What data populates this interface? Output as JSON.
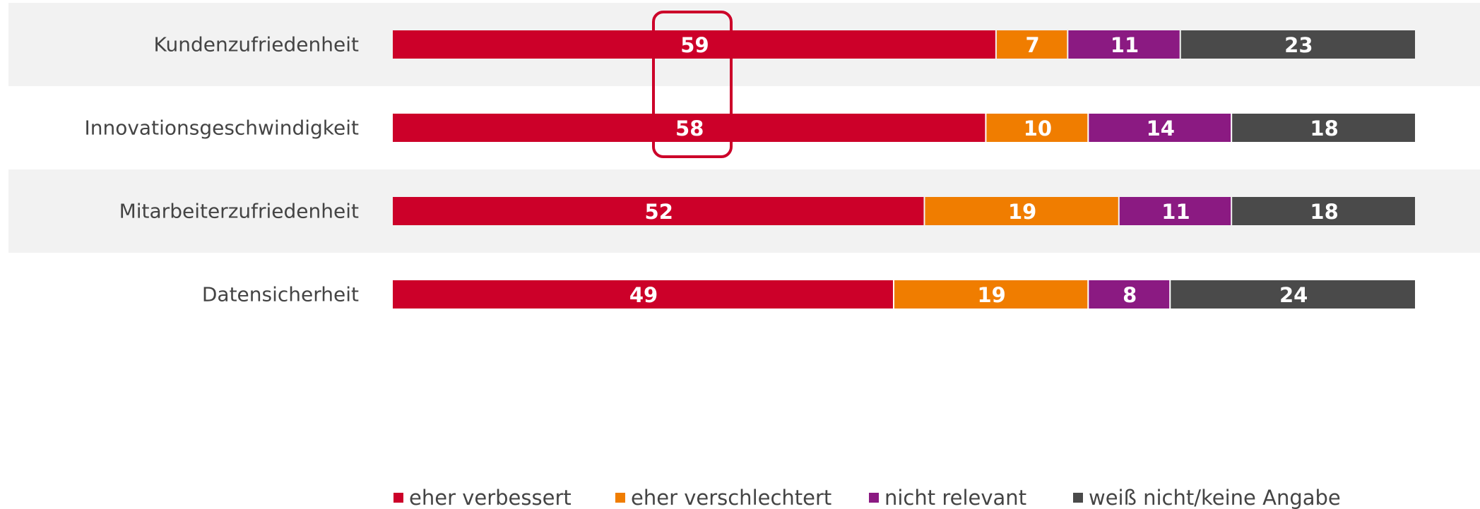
{
  "chart_data": {
    "type": "stacked-bar-horizontal",
    "categories": [
      "Kundenzufriedenheit",
      "Innovationsgeschwindigkeit",
      "Mitarbeiterzufriedenheit",
      "Datensicherheit"
    ],
    "series": [
      {
        "name": "eher verbessert",
        "color": "#cc0029",
        "values": [
          59,
          58,
          52,
          49
        ]
      },
      {
        "name": "eher verschlechtert",
        "color": "#f07d00",
        "values": [
          7,
          10,
          19,
          19
        ]
      },
      {
        "name": "nicht relevant",
        "color": "#8b1a82",
        "values": [
          11,
          14,
          11,
          8
        ]
      },
      {
        "name": "weiß nicht/keine Angabe",
        "color": "#4a4a4a",
        "values": [
          23,
          18,
          18,
          24
        ]
      }
    ],
    "xlim": [
      0,
      100
    ]
  }
}
